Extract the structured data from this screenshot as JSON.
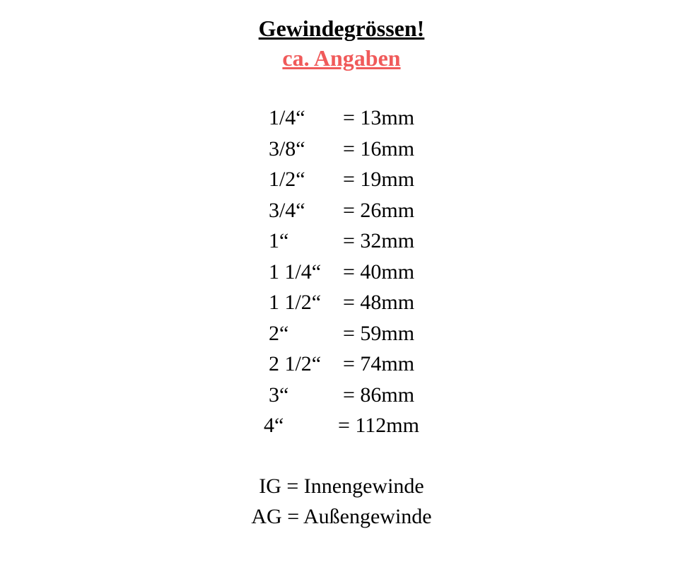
{
  "header": {
    "title": "Gewindegrössen!",
    "subtitle": "ca. Angaben"
  },
  "colors": {
    "title_color": "#000000",
    "subtitle_color": "#f05a5a",
    "text_color": "#000000",
    "background_color": "#ffffff"
  },
  "typography": {
    "title_fontsize": 32,
    "body_fontsize": 30,
    "font_family": "Georgia, Times New Roman, serif",
    "title_weight": "bold",
    "underline_title": true,
    "underline_subtitle": true
  },
  "sizes": {
    "type": "table",
    "rows": [
      {
        "label": "1/4“",
        "value": "= 13mm"
      },
      {
        "label": "3/8“",
        "value": "= 16mm"
      },
      {
        "label": "1/2“",
        "value": "= 19mm"
      },
      {
        "label": "3/4“",
        "value": "= 26mm"
      },
      {
        "label": "1“",
        "value": "= 32mm"
      },
      {
        "label": "1 1/4“",
        "value": "= 40mm"
      },
      {
        "label": "1 1/2“",
        "value": "= 48mm"
      },
      {
        "label": "2“",
        "value": "= 59mm"
      },
      {
        "label": "2 1/2“",
        "value": "= 74mm"
      },
      {
        "label": "3“",
        "value": "= 86mm"
      },
      {
        "label": "4“",
        "value": "= 112mm"
      }
    ]
  },
  "legend": {
    "items": [
      "IG = Innengewinde",
      "AG = Außengewinde"
    ]
  }
}
